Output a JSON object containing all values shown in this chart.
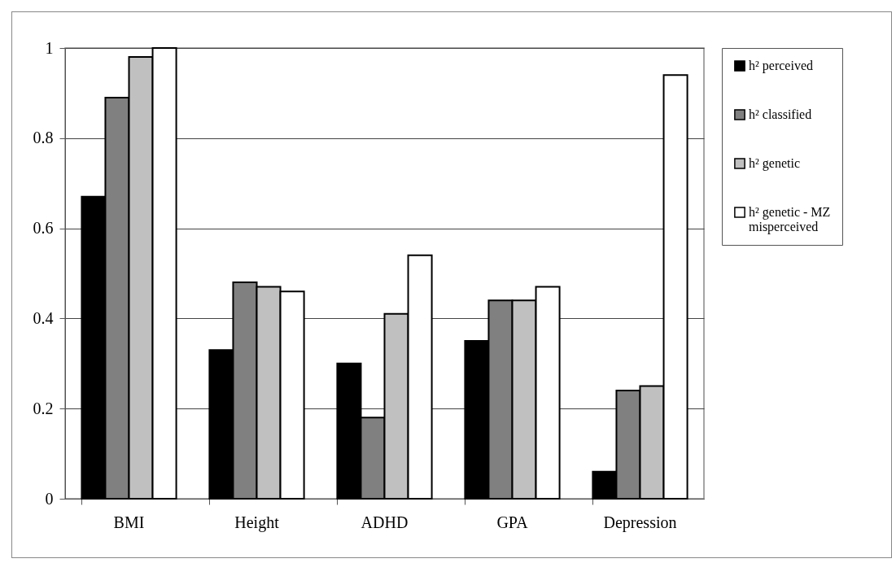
{
  "chart_data": {
    "type": "bar",
    "categories": [
      "BMI",
      "Height",
      "ADHD",
      "GPA",
      "Depression"
    ],
    "series": [
      {
        "name": "h² perceived",
        "color": "#000000",
        "values": [
          0.67,
          0.33,
          0.3,
          0.35,
          0.06
        ]
      },
      {
        "name": "h² classified",
        "color": "#808080",
        "values": [
          0.89,
          0.48,
          0.18,
          0.44,
          0.24
        ]
      },
      {
        "name": "h² genetic",
        "color": "#c0c0c0",
        "values": [
          0.98,
          0.47,
          0.41,
          0.44,
          0.25
        ]
      },
      {
        "name": "h² genetic - MZ misperceived",
        "color": "#ffffff",
        "values": [
          1.0,
          0.46,
          0.54,
          0.47,
          0.94
        ]
      }
    ],
    "ylim": [
      0,
      1
    ],
    "yticks": [
      0,
      0.2,
      0.4,
      0.6,
      0.8,
      1
    ],
    "grid": "y",
    "legend": "right"
  }
}
